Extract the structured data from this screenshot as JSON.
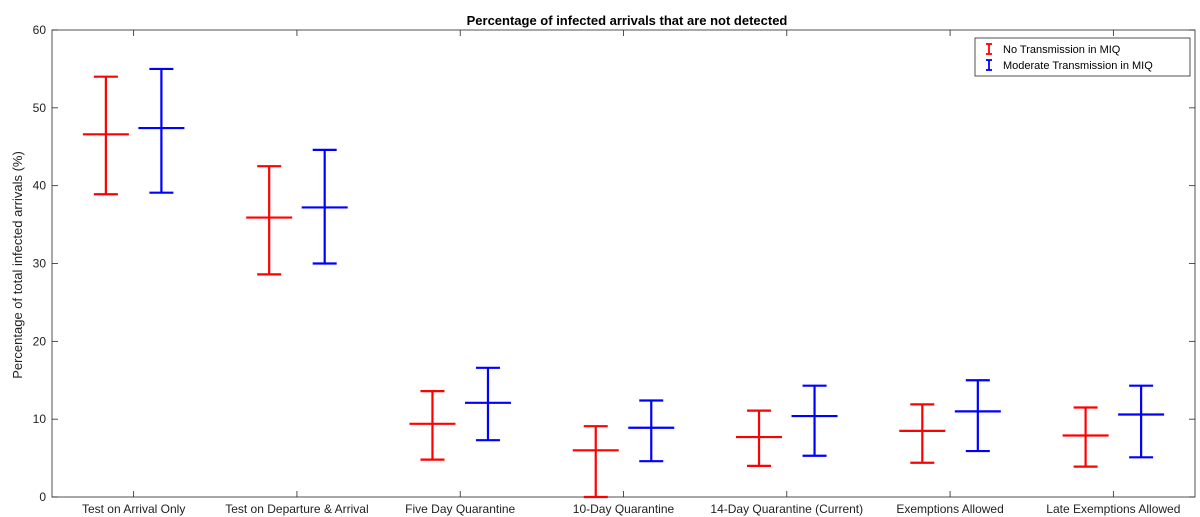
{
  "chart_data": {
    "type": "errorbar",
    "title": "Percentage of infected arrivals that are not detected",
    "xlabel": "",
    "ylabel": "Percentage of total infected arrivals (%)",
    "ylim": [
      0,
      60
    ],
    "yticks": [
      0,
      10,
      20,
      30,
      40,
      50,
      60
    ],
    "grid": false,
    "legend_position": "top-right",
    "categories": [
      "Test on Arrival Only",
      "Test on Departure & Arrival",
      "Five Day Quarantine",
      "10-Day Quarantine",
      "14-Day Quarantine (Current)",
      "Exemptions Allowed",
      "Late Exemptions Allowed"
    ],
    "series": [
      {
        "name": "No Transmission in MIQ",
        "color": "#ff0000",
        "values": [
          46.6,
          35.9,
          9.4,
          6.0,
          7.7,
          8.5,
          7.9
        ],
        "lower": [
          38.9,
          28.6,
          4.8,
          0.0,
          4.0,
          4.4,
          3.9
        ],
        "upper": [
          54.0,
          42.5,
          13.6,
          9.1,
          11.1,
          11.9,
          11.5
        ]
      },
      {
        "name": "Moderate Transmission in MIQ",
        "color": "#0000ff",
        "values": [
          47.4,
          37.2,
          12.1,
          8.9,
          10.4,
          11.0,
          10.6
        ],
        "lower": [
          39.1,
          30.0,
          7.3,
          4.6,
          5.3,
          5.9,
          5.1
        ],
        "upper": [
          55.0,
          44.6,
          16.6,
          12.4,
          14.3,
          15.0,
          14.3
        ]
      }
    ]
  }
}
